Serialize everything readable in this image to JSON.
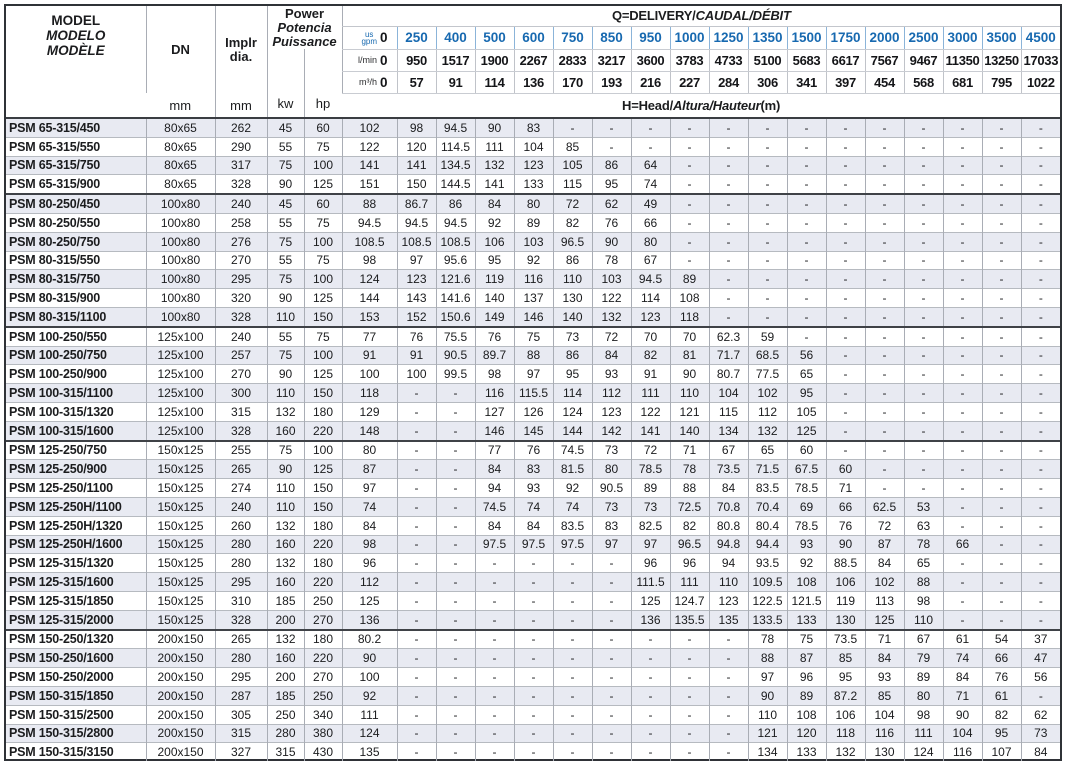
{
  "colors": {
    "accent_blue": "#1769b0",
    "row_shade": "#e8eaf2"
  },
  "header": {
    "model_lines": [
      "MODEL",
      "MODELO",
      "MODÈLE"
    ],
    "dn_label": "DN",
    "impeller_lines": [
      "Implr",
      "dia."
    ],
    "power_lines": [
      "Power",
      "Potencia",
      "Puissance"
    ],
    "kw_label": "kw",
    "hp_label": "hp",
    "dn_unit": "mm",
    "impeller_unit": "mm",
    "q_title_roman": "Q=DELIVERY/",
    "q_title_italic": "CAUDAL/DÉBIT",
    "h_title_roman": "H=Head/",
    "h_title_italic": "Altura/Hauteur",
    "h_title_suffix": "(m)",
    "flow_units": {
      "gpm_top": "us",
      "gpm_bottom": "gpm",
      "lmin": "l/min",
      "m3h": "m³/h"
    },
    "flow_gpm": [
      "0",
      "250",
      "400",
      "500",
      "600",
      "750",
      "850",
      "950",
      "1000",
      "1250",
      "1350",
      "1500",
      "1750",
      "2000",
      "2500",
      "3000",
      "3500",
      "4500"
    ],
    "flow_lmin": [
      "0",
      "950",
      "1517",
      "1900",
      "2267",
      "2833",
      "3217",
      "3600",
      "3783",
      "4733",
      "5100",
      "5683",
      "6617",
      "7567",
      "9467",
      "11350",
      "13250",
      "17033"
    ],
    "flow_m3h": [
      "0",
      "57",
      "91",
      "114",
      "136",
      "170",
      "193",
      "216",
      "227",
      "284",
      "306",
      "341",
      "397",
      "454",
      "568",
      "681",
      "795",
      "1022"
    ]
  },
  "rows": [
    {
      "model": "PSM 65-315/450",
      "dn": "80x65",
      "dia": "262",
      "kw": "45",
      "hp": "60",
      "group_start": false,
      "head": [
        "102",
        "98",
        "94.5",
        "90",
        "83",
        "-",
        "-",
        "-",
        "-",
        "-",
        "-",
        "-",
        "-",
        "-",
        "-",
        "-",
        "-",
        "-"
      ]
    },
    {
      "model": "PSM 65-315/550",
      "dn": "80x65",
      "dia": "290",
      "kw": "55",
      "hp": "75",
      "group_start": false,
      "head": [
        "122",
        "120",
        "114.5",
        "111",
        "104",
        "85",
        "-",
        "-",
        "-",
        "-",
        "-",
        "-",
        "-",
        "-",
        "-",
        "-",
        "-",
        "-"
      ]
    },
    {
      "model": "PSM 65-315/750",
      "dn": "80x65",
      "dia": "317",
      "kw": "75",
      "hp": "100",
      "group_start": false,
      "head": [
        "141",
        "141",
        "134.5",
        "132",
        "123",
        "105",
        "86",
        "64",
        "-",
        "-",
        "-",
        "-",
        "-",
        "-",
        "-",
        "-",
        "-",
        "-"
      ]
    },
    {
      "model": "PSM 65-315/900",
      "dn": "80x65",
      "dia": "328",
      "kw": "90",
      "hp": "125",
      "group_start": false,
      "head": [
        "151",
        "150",
        "144.5",
        "141",
        "133",
        "115",
        "95",
        "74",
        "-",
        "-",
        "-",
        "-",
        "-",
        "-",
        "-",
        "-",
        "-",
        "-"
      ]
    },
    {
      "model": "PSM 80-250/450",
      "dn": "100x80",
      "dia": "240",
      "kw": "45",
      "hp": "60",
      "group_start": true,
      "head": [
        "88",
        "86.7",
        "86",
        "84",
        "80",
        "72",
        "62",
        "49",
        "-",
        "-",
        "-",
        "-",
        "-",
        "-",
        "-",
        "-",
        "-",
        "-"
      ]
    },
    {
      "model": "PSM 80-250/550",
      "dn": "100x80",
      "dia": "258",
      "kw": "55",
      "hp": "75",
      "group_start": false,
      "head": [
        "94.5",
        "94.5",
        "94.5",
        "92",
        "89",
        "82",
        "76",
        "66",
        "-",
        "-",
        "-",
        "-",
        "-",
        "-",
        "-",
        "-",
        "-",
        "-"
      ]
    },
    {
      "model": "PSM 80-250/750",
      "dn": "100x80",
      "dia": "276",
      "kw": "75",
      "hp": "100",
      "group_start": false,
      "head": [
        "108.5",
        "108.5",
        "108.5",
        "106",
        "103",
        "96.5",
        "90",
        "80",
        "-",
        "-",
        "-",
        "-",
        "-",
        "-",
        "-",
        "-",
        "-",
        "-"
      ]
    },
    {
      "model": "PSM 80-315/550",
      "dn": "100x80",
      "dia": "270",
      "kw": "55",
      "hp": "75",
      "group_start": false,
      "head": [
        "98",
        "97",
        "95.6",
        "95",
        "92",
        "86",
        "78",
        "67",
        "-",
        "-",
        "-",
        "-",
        "-",
        "-",
        "-",
        "-",
        "-",
        "-"
      ]
    },
    {
      "model": "PSM 80-315/750",
      "dn": "100x80",
      "dia": "295",
      "kw": "75",
      "hp": "100",
      "group_start": false,
      "head": [
        "124",
        "123",
        "121.6",
        "119",
        "116",
        "110",
        "103",
        "94.5",
        "89",
        "-",
        "-",
        "-",
        "-",
        "-",
        "-",
        "-",
        "-",
        "-"
      ]
    },
    {
      "model": "PSM 80-315/900",
      "dn": "100x80",
      "dia": "320",
      "kw": "90",
      "hp": "125",
      "group_start": false,
      "head": [
        "144",
        "143",
        "141.6",
        "140",
        "137",
        "130",
        "122",
        "114",
        "108",
        "-",
        "-",
        "-",
        "-",
        "-",
        "-",
        "-",
        "-",
        "-"
      ]
    },
    {
      "model": "PSM 80-315/1100",
      "dn": "100x80",
      "dia": "328",
      "kw": "110",
      "hp": "150",
      "group_start": false,
      "head": [
        "153",
        "152",
        "150.6",
        "149",
        "146",
        "140",
        "132",
        "123",
        "118",
        "-",
        "-",
        "-",
        "-",
        "-",
        "-",
        "-",
        "-",
        "-"
      ]
    },
    {
      "model": "PSM 100-250/550",
      "dn": "125x100",
      "dia": "240",
      "kw": "55",
      "hp": "75",
      "group_start": true,
      "head": [
        "77",
        "76",
        "75.5",
        "76",
        "75",
        "73",
        "72",
        "70",
        "70",
        "62.3",
        "59",
        "-",
        "-",
        "-",
        "-",
        "-",
        "-",
        "-"
      ]
    },
    {
      "model": "PSM 100-250/750",
      "dn": "125x100",
      "dia": "257",
      "kw": "75",
      "hp": "100",
      "group_start": false,
      "head": [
        "91",
        "91",
        "90.5",
        "89.7",
        "88",
        "86",
        "84",
        "82",
        "81",
        "71.7",
        "68.5",
        "56",
        "-",
        "-",
        "-",
        "-",
        "-",
        "-"
      ]
    },
    {
      "model": "PSM 100-250/900",
      "dn": "125x100",
      "dia": "270",
      "kw": "90",
      "hp": "125",
      "group_start": false,
      "head": [
        "100",
        "100",
        "99.5",
        "98",
        "97",
        "95",
        "93",
        "91",
        "90",
        "80.7",
        "77.5",
        "65",
        "-",
        "-",
        "-",
        "-",
        "-",
        "-"
      ]
    },
    {
      "model": "PSM 100-315/1100",
      "dn": "125x100",
      "dia": "300",
      "kw": "110",
      "hp": "150",
      "group_start": false,
      "head": [
        "118",
        "-",
        "-",
        "116",
        "115.5",
        "114",
        "112",
        "111",
        "110",
        "104",
        "102",
        "95",
        "-",
        "-",
        "-",
        "-",
        "-",
        "-"
      ]
    },
    {
      "model": "PSM 100-315/1320",
      "dn": "125x100",
      "dia": "315",
      "kw": "132",
      "hp": "180",
      "group_start": false,
      "head": [
        "129",
        "-",
        "-",
        "127",
        "126",
        "124",
        "123",
        "122",
        "121",
        "115",
        "112",
        "105",
        "-",
        "-",
        "-",
        "-",
        "-",
        "-"
      ]
    },
    {
      "model": "PSM 100-315/1600",
      "dn": "125x100",
      "dia": "328",
      "kw": "160",
      "hp": "220",
      "group_start": false,
      "head": [
        "148",
        "-",
        "-",
        "146",
        "145",
        "144",
        "142",
        "141",
        "140",
        "134",
        "132",
        "125",
        "-",
        "-",
        "-",
        "-",
        "-",
        "-"
      ]
    },
    {
      "model": "PSM 125-250/750",
      "dn": "150x125",
      "dia": "255",
      "kw": "75",
      "hp": "100",
      "group_start": true,
      "head": [
        "80",
        "-",
        "-",
        "77",
        "76",
        "74.5",
        "73",
        "72",
        "71",
        "67",
        "65",
        "60",
        "-",
        "-",
        "-",
        "-",
        "-",
        "-"
      ]
    },
    {
      "model": "PSM 125-250/900",
      "dn": "150x125",
      "dia": "265",
      "kw": "90",
      "hp": "125",
      "group_start": false,
      "head": [
        "87",
        "-",
        "-",
        "84",
        "83",
        "81.5",
        "80",
        "78.5",
        "78",
        "73.5",
        "71.5",
        "67.5",
        "60",
        "-",
        "-",
        "-",
        "-",
        "-"
      ]
    },
    {
      "model": "PSM 125-250/1100",
      "dn": "150x125",
      "dia": "274",
      "kw": "110",
      "hp": "150",
      "group_start": false,
      "head": [
        "97",
        "-",
        "-",
        "94",
        "93",
        "92",
        "90.5",
        "89",
        "88",
        "84",
        "83.5",
        "78.5",
        "71",
        "-",
        "-",
        "-",
        "-",
        "-"
      ]
    },
    {
      "model": "PSM 125-250H/1100",
      "dn": "150x125",
      "dia": "240",
      "kw": "110",
      "hp": "150",
      "group_start": false,
      "head": [
        "74",
        "-",
        "-",
        "74.5",
        "74",
        "74",
        "73",
        "73",
        "72.5",
        "70.8",
        "70.4",
        "69",
        "66",
        "62.5",
        "53",
        "-",
        "-",
        "-"
      ]
    },
    {
      "model": "PSM 125-250H/1320",
      "dn": "150x125",
      "dia": "260",
      "kw": "132",
      "hp": "180",
      "group_start": false,
      "head": [
        "84",
        "-",
        "-",
        "84",
        "84",
        "83.5",
        "83",
        "82.5",
        "82",
        "80.8",
        "80.4",
        "78.5",
        "76",
        "72",
        "63",
        "-",
        "-",
        "-"
      ]
    },
    {
      "model": "PSM 125-250H/1600",
      "dn": "150x125",
      "dia": "280",
      "kw": "160",
      "hp": "220",
      "group_start": false,
      "head": [
        "98",
        "-",
        "-",
        "97.5",
        "97.5",
        "97.5",
        "97",
        "97",
        "96.5",
        "94.8",
        "94.4",
        "93",
        "90",
        "87",
        "78",
        "66",
        "-",
        "-"
      ]
    },
    {
      "model": "PSM 125-315/1320",
      "dn": "150x125",
      "dia": "280",
      "kw": "132",
      "hp": "180",
      "group_start": false,
      "head": [
        "96",
        "-",
        "-",
        "-",
        "-",
        "-",
        "-",
        "96",
        "96",
        "94",
        "93.5",
        "92",
        "88.5",
        "84",
        "65",
        "-",
        "-",
        "-"
      ]
    },
    {
      "model": "PSM 125-315/1600",
      "dn": "150x125",
      "dia": "295",
      "kw": "160",
      "hp": "220",
      "group_start": false,
      "head": [
        "112",
        "-",
        "-",
        "-",
        "-",
        "-",
        "-",
        "111.5",
        "111",
        "110",
        "109.5",
        "108",
        "106",
        "102",
        "88",
        "-",
        "-",
        "-"
      ]
    },
    {
      "model": "PSM 125-315/1850",
      "dn": "150x125",
      "dia": "310",
      "kw": "185",
      "hp": "250",
      "group_start": false,
      "head": [
        "125",
        "-",
        "-",
        "-",
        "-",
        "-",
        "-",
        "125",
        "124.7",
        "123",
        "122.5",
        "121.5",
        "119",
        "113",
        "98",
        "-",
        "-",
        "-"
      ]
    },
    {
      "model": "PSM 125-315/2000",
      "dn": "150x125",
      "dia": "328",
      "kw": "200",
      "hp": "270",
      "group_start": false,
      "head": [
        "136",
        "-",
        "-",
        "-",
        "-",
        "-",
        "-",
        "136",
        "135.5",
        "135",
        "133.5",
        "133",
        "130",
        "125",
        "110",
        "-",
        "-",
        "-"
      ]
    },
    {
      "model": "PSM 150-250/1320",
      "dn": "200x150",
      "dia": "265",
      "kw": "132",
      "hp": "180",
      "group_start": true,
      "head": [
        "80.2",
        "-",
        "-",
        "-",
        "-",
        "-",
        "-",
        "-",
        "-",
        "-",
        "78",
        "75",
        "73.5",
        "71",
        "67",
        "61",
        "54",
        "37"
      ]
    },
    {
      "model": "PSM 150-250/1600",
      "dn": "200x150",
      "dia": "280",
      "kw": "160",
      "hp": "220",
      "group_start": false,
      "head": [
        "90",
        "-",
        "-",
        "-",
        "-",
        "-",
        "-",
        "-",
        "-",
        "-",
        "88",
        "87",
        "85",
        "84",
        "79",
        "74",
        "66",
        "47"
      ]
    },
    {
      "model": "PSM 150-250/2000",
      "dn": "200x150",
      "dia": "295",
      "kw": "200",
      "hp": "270",
      "group_start": false,
      "head": [
        "100",
        "-",
        "-",
        "-",
        "-",
        "-",
        "-",
        "-",
        "-",
        "-",
        "97",
        "96",
        "95",
        "93",
        "89",
        "84",
        "76",
        "56"
      ]
    },
    {
      "model": "PSM 150-315/1850",
      "dn": "200x150",
      "dia": "287",
      "kw": "185",
      "hp": "250",
      "group_start": false,
      "head": [
        "92",
        "-",
        "-",
        "-",
        "-",
        "-",
        "-",
        "-",
        "-",
        "-",
        "90",
        "89",
        "87.2",
        "85",
        "80",
        "71",
        "61",
        "-"
      ]
    },
    {
      "model": "PSM 150-315/2500",
      "dn": "200x150",
      "dia": "305",
      "kw": "250",
      "hp": "340",
      "group_start": false,
      "head": [
        "111",
        "-",
        "-",
        "-",
        "-",
        "-",
        "-",
        "-",
        "-",
        "-",
        "110",
        "108",
        "106",
        "104",
        "98",
        "90",
        "82",
        "62"
      ]
    },
    {
      "model": "PSM 150-315/2800",
      "dn": "200x150",
      "dia": "315",
      "kw": "280",
      "hp": "380",
      "group_start": false,
      "head": [
        "124",
        "-",
        "-",
        "-",
        "-",
        "-",
        "-",
        "-",
        "-",
        "-",
        "121",
        "120",
        "118",
        "116",
        "111",
        "104",
        "95",
        "73"
      ]
    },
    {
      "model": "PSM 150-315/3150",
      "dn": "200x150",
      "dia": "327",
      "kw": "315",
      "hp": "430",
      "group_start": false,
      "head": [
        "135",
        "-",
        "-",
        "-",
        "-",
        "-",
        "-",
        "-",
        "-",
        "-",
        "134",
        "133",
        "132",
        "130",
        "124",
        "116",
        "107",
        "84"
      ]
    }
  ]
}
